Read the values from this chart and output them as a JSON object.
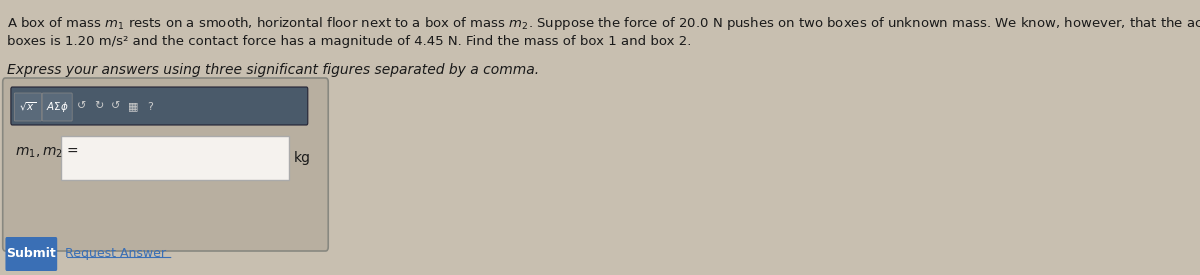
{
  "bg_color": "#c8bfb0",
  "text_color": "#1a1a1a",
  "para1_line1": "A box of mass $m_1$ rests on a smooth, horizontal floor next to a box of mass $m_2$. Suppose the force of 20.0 N pushes on two boxes of unknown mass. We know, however, that the acceleration of the",
  "para1_line2": "boxes is 1.20 m/s² and the contact force has a magnitude of 4.45 N. Find the mass of box 1 and box 2.",
  "para2": "Express your answers using three significant figures separated by a comma.",
  "label_m1m2": "$m_1, m_2$ =",
  "unit_kg": "kg",
  "submit_label": "Submit",
  "request_label": "Request Answer",
  "submit_bg": "#3a6fb5",
  "submit_text": "#ffffff",
  "toolbar_bg": "#4a5a6a",
  "outer_box_bg": "#b8afa0",
  "outer_box_border": "#888880",
  "font_size_para": 9.5,
  "font_size_label": 10,
  "font_size_button": 9,
  "request_link_color": "#3a6fb5"
}
